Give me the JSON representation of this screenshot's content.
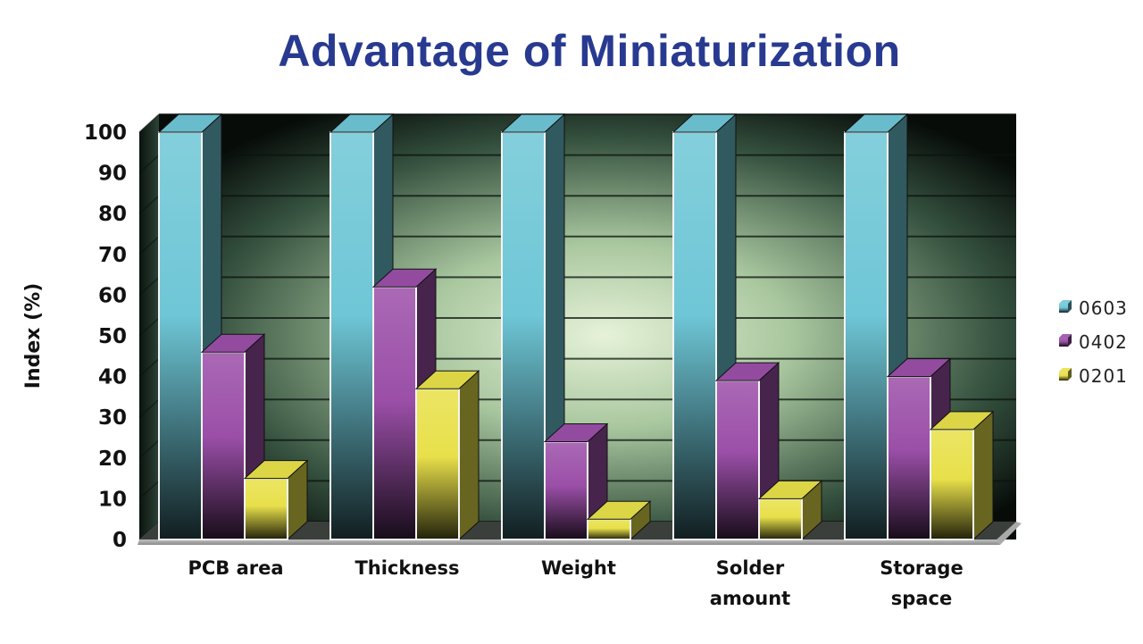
{
  "chart_data": {
    "type": "bar",
    "title": "Advantage of Miniaturization",
    "ylabel": "Index (%)",
    "xlabel": "",
    "ylim": [
      0,
      100
    ],
    "yticks": [
      0,
      10,
      20,
      30,
      40,
      50,
      60,
      70,
      80,
      90,
      100
    ],
    "grid": true,
    "legend_position": "right",
    "categories": [
      [
        "PCB area"
      ],
      [
        "Thickness"
      ],
      [
        "Weight"
      ],
      [
        "Solder",
        "amount"
      ],
      [
        "Storage",
        "space"
      ]
    ],
    "series": [
      {
        "name": "0603",
        "color": "#6ec6d6",
        "values": [
          100,
          100,
          100,
          100,
          100
        ]
      },
      {
        "name": "0402",
        "color": "#9b4fa8",
        "values": [
          46,
          62,
          24,
          39,
          40
        ]
      },
      {
        "name": "0201",
        "color": "#e8e04a",
        "values": [
          15,
          37,
          5,
          10,
          27
        ]
      }
    ]
  }
}
